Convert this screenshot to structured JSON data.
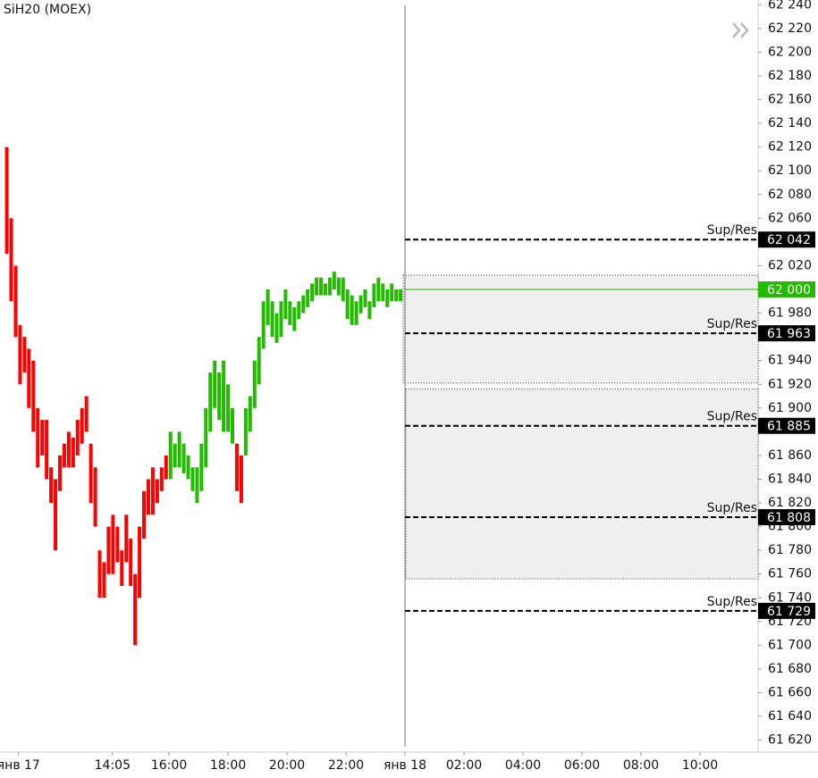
{
  "chart_data": {
    "type": "candles",
    "title": "SiH20 (MOEX)",
    "xlim": [
      10.27,
      35.97
    ],
    "ylim": [
      61614,
      62244
    ],
    "xticks": [
      {
        "value": 10.9,
        "label": "янв 17"
      },
      {
        "value": 14.0833,
        "label": "14:05"
      },
      {
        "value": 16,
        "label": "16:00"
      },
      {
        "value": 18,
        "label": "18:00"
      },
      {
        "value": 20,
        "label": "20:00"
      },
      {
        "value": 22,
        "label": "22:00"
      },
      {
        "value": 24,
        "label": "янв 18"
      },
      {
        "value": 26,
        "label": "02:00"
      },
      {
        "value": 28,
        "label": "04:00"
      },
      {
        "value": 30,
        "label": "06:00"
      },
      {
        "value": 32,
        "label": "08:00"
      },
      {
        "value": 34,
        "label": "10:00"
      }
    ],
    "yticks": [
      {
        "value": 62240,
        "label": "62 240"
      },
      {
        "value": 62220,
        "label": "62 220"
      },
      {
        "value": 62200,
        "label": "62 200"
      },
      {
        "value": 62180,
        "label": "62 180"
      },
      {
        "value": 62160,
        "label": "62 160"
      },
      {
        "value": 62140,
        "label": "62 140"
      },
      {
        "value": 62120,
        "label": "62 120"
      },
      {
        "value": 62100,
        "label": "62 100"
      },
      {
        "value": 62080,
        "label": "62 080"
      },
      {
        "value": 62060,
        "label": "62 060"
      },
      {
        "value": 62020,
        "label": "62 020"
      },
      {
        "value": 61980,
        "label": "61 980"
      },
      {
        "value": 61940,
        "label": "61 940"
      },
      {
        "value": 61920,
        "label": "61 920"
      },
      {
        "value": 61900,
        "label": "61 900"
      },
      {
        "value": 61860,
        "label": "61 860"
      },
      {
        "value": 61840,
        "label": "61 840"
      },
      {
        "value": 61820,
        "label": "61 820"
      },
      {
        "value": 61800,
        "label": "61 800"
      },
      {
        "value": 61780,
        "label": "61 780"
      },
      {
        "value": 61760,
        "label": "61 760"
      },
      {
        "value": 61740,
        "label": "61 740"
      },
      {
        "value": 61720,
        "label": "61 720"
      },
      {
        "value": 61700,
        "label": "61 700"
      },
      {
        "value": 61680,
        "label": "61 680"
      },
      {
        "value": 61660,
        "label": "61 660"
      },
      {
        "value": 61640,
        "label": "61 640"
      },
      {
        "value": 61620,
        "label": "61 620"
      }
    ],
    "series": [
      {
        "color": "#ff0000",
        "x": [
          10.5,
          10.65,
          10.8,
          10.95,
          11.1,
          11.25,
          11.4,
          11.55,
          11.7,
          11.85,
          12,
          12.15,
          12.3,
          12.45,
          12.6,
          12.75,
          12.9,
          13.05,
          13.2,
          13.35,
          13.5,
          13.65,
          13.8,
          13.95,
          14.1,
          14.25,
          14.4,
          14.55,
          14.7,
          14.85,
          15,
          15.15,
          15.3,
          15.45,
          15.6,
          15.75,
          15.9,
          18.3,
          18.45
        ],
        "high": [
          62120,
          62060,
          62020,
          61970,
          61960,
          61950,
          61940,
          61900,
          61890,
          61890,
          61850,
          61840,
          61860,
          61870,
          61880,
          61875,
          61890,
          61900,
          61910,
          61870,
          61850,
          61780,
          61770,
          61800,
          61810,
          61800,
          61780,
          61810,
          61790,
          61760,
          61800,
          61830,
          61840,
          61850,
          61840,
          61850,
          61860,
          61870,
          61860
        ],
        "low": [
          62030,
          61990,
          61960,
          61920,
          61930,
          61900,
          61880,
          61850,
          61860,
          61840,
          61820,
          61780,
          61830,
          61850,
          61850,
          61850,
          61860,
          61870,
          61880,
          61820,
          61800,
          61740,
          61740,
          61760,
          61760,
          61770,
          61750,
          61770,
          61750,
          61700,
          61740,
          61790,
          61810,
          61810,
          61820,
          61830,
          61840,
          61830,
          61820
        ]
      },
      {
        "color": "#22bb00",
        "x": [
          16.05,
          16.2,
          16.35,
          16.5,
          16.65,
          16.8,
          16.95,
          17.1,
          17.25,
          17.4,
          17.55,
          17.7,
          17.85,
          18,
          18.15,
          18.6,
          18.75,
          18.9,
          19.05,
          19.2,
          19.35,
          19.5,
          19.65,
          19.8,
          19.95,
          20.1,
          20.25,
          20.4,
          20.55,
          20.7,
          20.85,
          21,
          21.15,
          21.3,
          21.45,
          21.6,
          21.75,
          21.9,
          22.05,
          22.2,
          22.35,
          22.5,
          22.65,
          22.8,
          22.95,
          23.1,
          23.25,
          23.4,
          23.55,
          23.7,
          23.85
        ],
        "high": [
          61880,
          61870,
          61880,
          61870,
          61860,
          61850,
          61850,
          61870,
          61900,
          61930,
          61940,
          61930,
          61940,
          61920,
          61900,
          61900,
          61910,
          61940,
          61960,
          61990,
          62000,
          61990,
          61980,
          61990,
          62000,
          61990,
          61985,
          61990,
          61995,
          62000,
          62005,
          62010,
          62010,
          62005,
          62010,
          62015,
          62010,
          62010,
          62000,
          61995,
          61990,
          61995,
          62000,
          61990,
          62005,
          62010,
          62005,
          62000,
          62005,
          62000,
          62000
        ],
        "low": [
          61840,
          61850,
          61850,
          61845,
          61840,
          61830,
          61820,
          61830,
          61850,
          61880,
          61900,
          61890,
          61880,
          61880,
          61870,
          61860,
          61880,
          61900,
          61920,
          61950,
          61970,
          61960,
          61955,
          61960,
          61975,
          61970,
          61965,
          61975,
          61980,
          61985,
          61990,
          61995,
          61995,
          61995,
          61995,
          62000,
          61995,
          61990,
          61975,
          61970,
          61970,
          61980,
          61985,
          61975,
          61985,
          61990,
          61990,
          61985,
          61990,
          61990,
          61990
        ]
      }
    ],
    "zones": [
      {
        "top": 62012,
        "bottom": 61921
      },
      {
        "top": 61916,
        "bottom": 61756
      }
    ],
    "levels": [
      {
        "value": 62042,
        "value_label": "62 042",
        "text": "Sup/Res"
      },
      {
        "value": 61963,
        "value_label": "61 963",
        "text": "Sup/Res"
      },
      {
        "value": 61885,
        "value_label": "61 885",
        "text": "Sup/Res"
      },
      {
        "value": 61808,
        "value_label": "61 808",
        "text": "Sup/Res"
      },
      {
        "value": 61729,
        "value_label": "61 729",
        "text": "Sup/Res"
      }
    ],
    "last_price": {
      "value": 62000,
      "value_label": "62 000",
      "color": "#22bb00"
    }
  }
}
